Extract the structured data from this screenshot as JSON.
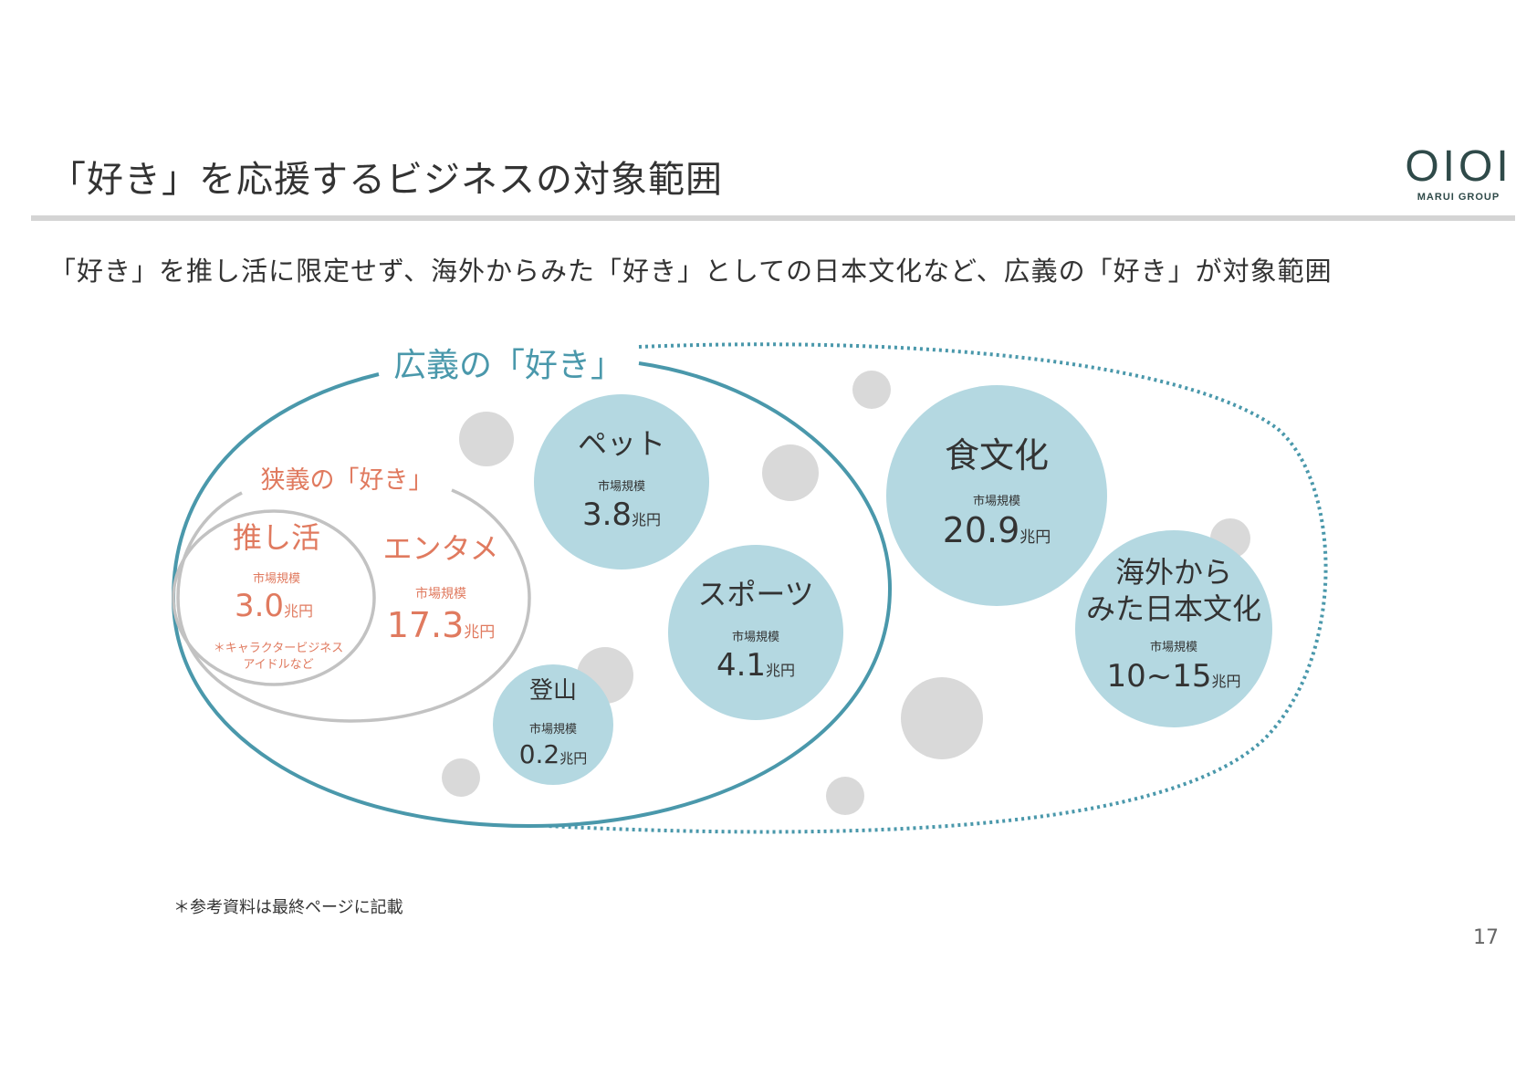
{
  "header": {
    "title": "「好き」を応援するビジネスの対象範囲",
    "logo_mark": "OIOI",
    "logo_text": "MARUI GROUP"
  },
  "subtitle": "「好き」を推し活に限定せず、海外からみた「好き」としての日本文化など、広義の「好き」が対象範囲",
  "diagram": {
    "broad_label": "広義の「好き」",
    "narrow_label": "狭義の「好き」",
    "market_label": "市場規模",
    "unit": "兆円",
    "colors": {
      "teal": "#4a98ab",
      "bubble": "#b4d8e1",
      "grey": "#d9d9d9",
      "salmon": "#e07a5f",
      "ring": "#c2c2c2"
    },
    "items": {
      "oshi": {
        "name": "推し活",
        "value": "3.0",
        "note_line1": "＊キャラクタービジネス",
        "note_line2": "アイドルなど"
      },
      "enta": {
        "name": "エンタメ",
        "value": "17.3"
      },
      "pet": {
        "name": "ペット",
        "value": "3.8"
      },
      "sports": {
        "name": "スポーツ",
        "value": "4.1"
      },
      "tozan": {
        "name": "登山",
        "value": "0.2"
      },
      "food": {
        "name": "食文化",
        "value": "20.9"
      },
      "japan": {
        "name_line1": "海外から",
        "name_line2": "みた日本文化",
        "value": "10~15"
      }
    }
  },
  "footnote": "＊参考資料は最終ページに記載",
  "page_number": "17"
}
